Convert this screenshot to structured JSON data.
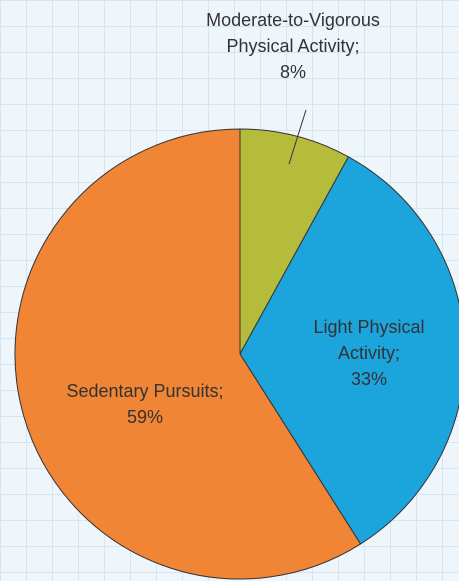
{
  "chart_data": {
    "type": "pie",
    "categories": [
      "Moderate-to-Vigorous Physical Activity;",
      "Light Physical Activity;",
      "Sedentary Pursuits;"
    ],
    "values": [
      8,
      33,
      59
    ],
    "value_labels": [
      "8%",
      "33%",
      "59%"
    ],
    "colors": [
      "#b5bc3b",
      "#1ca4dd",
      "#f08535"
    ]
  }
}
